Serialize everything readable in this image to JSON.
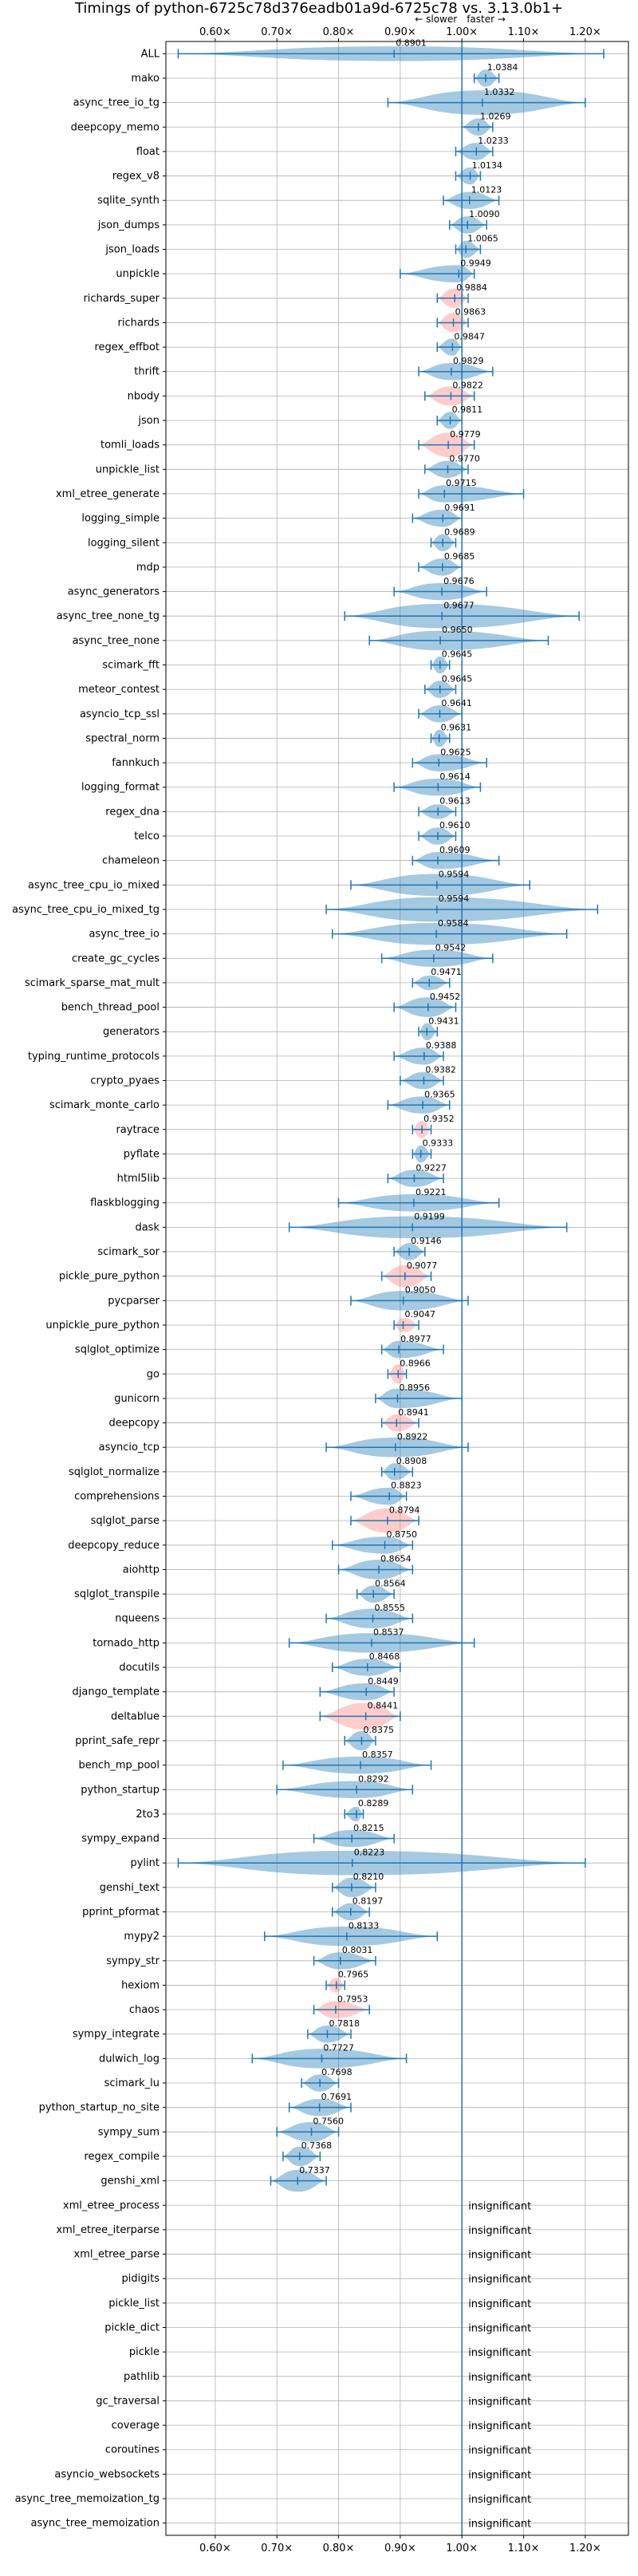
{
  "chart_data": {
    "type": "violin",
    "title": "Timings of python-6725c78d376eadb01a9d-6725c78 vs. 3.13.0b1+",
    "xlabel": "",
    "ylabel": "",
    "xlim": [
      0.52,
      1.27
    ],
    "x_ticks": [
      0.6,
      0.7,
      0.8,
      0.9,
      1.0,
      1.1,
      1.2
    ],
    "x_tick_labels": [
      "0.60×",
      "0.70×",
      "0.80×",
      "0.90×",
      "1.00×",
      "1.10×",
      "1.20×"
    ],
    "reference_line": 1.0,
    "direction_labels": {
      "slower": "← slower",
      "faster": "faster →"
    },
    "grid": true,
    "colors": {
      "faster": "#1f77b4",
      "slower": "#ff7f7f",
      "grid": "#b0b0b0"
    },
    "insignificant_label": "insignificant",
    "benchmarks": [
      {
        "name": "ALL",
        "value": 0.8901,
        "label": "0.8901",
        "min": 0.54,
        "max": 1.23,
        "width": 0.3,
        "color": "blue"
      },
      {
        "name": "mako",
        "value": 1.0384,
        "label": "1.0384",
        "min": 1.02,
        "max": 1.06,
        "width": 0.35,
        "color": "blue"
      },
      {
        "name": "async_tree_io_tg",
        "value": 1.0332,
        "label": "1.0332",
        "min": 0.88,
        "max": 1.2,
        "width": 0.5,
        "color": "blue"
      },
      {
        "name": "deepcopy_memo",
        "value": 1.0269,
        "label": "1.0269",
        "min": 1.0,
        "max": 1.05,
        "width": 0.35,
        "color": "blue"
      },
      {
        "name": "float",
        "value": 1.0233,
        "label": "1.0233",
        "min": 0.99,
        "max": 1.05,
        "width": 0.35,
        "color": "blue"
      },
      {
        "name": "regex_v8",
        "value": 1.0134,
        "label": "1.0134",
        "min": 0.99,
        "max": 1.03,
        "width": 0.35,
        "color": "blue"
      },
      {
        "name": "sqlite_synth",
        "value": 1.0123,
        "label": "1.0123",
        "min": 0.97,
        "max": 1.06,
        "width": 0.35,
        "color": "blue"
      },
      {
        "name": "json_dumps",
        "value": 1.009,
        "label": "1.0090",
        "min": 0.98,
        "max": 1.04,
        "width": 0.35,
        "color": "blue"
      },
      {
        "name": "json_loads",
        "value": 1.0065,
        "label": "1.0065",
        "min": 0.99,
        "max": 1.03,
        "width": 0.35,
        "color": "blue"
      },
      {
        "name": "unpickle",
        "value": 0.9949,
        "label": "0.9949",
        "min": 0.9,
        "max": 1.02,
        "width": 0.35,
        "color": "blue"
      },
      {
        "name": "richards_super",
        "value": 0.9884,
        "label": "0.9884",
        "min": 0.96,
        "max": 1.01,
        "width": 0.4,
        "color": "red"
      },
      {
        "name": "richards",
        "value": 0.9863,
        "label": "0.9863",
        "min": 0.96,
        "max": 1.01,
        "width": 0.4,
        "color": "red"
      },
      {
        "name": "regex_effbot",
        "value": 0.9847,
        "label": "0.9847",
        "min": 0.96,
        "max": 1.0,
        "width": 0.35,
        "color": "blue"
      },
      {
        "name": "thrift",
        "value": 0.9829,
        "label": "0.9829",
        "min": 0.93,
        "max": 1.05,
        "width": 0.35,
        "color": "blue"
      },
      {
        "name": "nbody",
        "value": 0.9822,
        "label": "0.9822",
        "min": 0.94,
        "max": 1.02,
        "width": 0.4,
        "color": "red"
      },
      {
        "name": "json",
        "value": 0.9811,
        "label": "0.9811",
        "min": 0.96,
        "max": 1.0,
        "width": 0.35,
        "color": "blue"
      },
      {
        "name": "tomli_loads",
        "value": 0.9779,
        "label": "0.9779",
        "min": 0.93,
        "max": 1.02,
        "width": 0.5,
        "color": "red"
      },
      {
        "name": "unpickle_list",
        "value": 0.977,
        "label": "0.9770",
        "min": 0.94,
        "max": 1.01,
        "width": 0.35,
        "color": "blue"
      },
      {
        "name": "xml_etree_generate",
        "value": 0.9715,
        "label": "0.9715",
        "min": 0.93,
        "max": 1.1,
        "width": 0.35,
        "color": "blue"
      },
      {
        "name": "logging_simple",
        "value": 0.9691,
        "label": "0.9691",
        "min": 0.92,
        "max": 1.0,
        "width": 0.35,
        "color": "blue"
      },
      {
        "name": "logging_silent",
        "value": 0.9689,
        "label": "0.9689",
        "min": 0.95,
        "max": 0.99,
        "width": 0.35,
        "color": "blue"
      },
      {
        "name": "mdp",
        "value": 0.9685,
        "label": "0.9685",
        "min": 0.93,
        "max": 1.0,
        "width": 0.35,
        "color": "blue"
      },
      {
        "name": "async_generators",
        "value": 0.9676,
        "label": "0.9676",
        "min": 0.89,
        "max": 1.04,
        "width": 0.35,
        "color": "blue"
      },
      {
        "name": "async_tree_none_tg",
        "value": 0.9677,
        "label": "0.9677",
        "min": 0.81,
        "max": 1.19,
        "width": 0.5,
        "color": "blue"
      },
      {
        "name": "async_tree_none",
        "value": 0.965,
        "label": "0.9650",
        "min": 0.85,
        "max": 1.14,
        "width": 0.4,
        "color": "blue"
      },
      {
        "name": "scimark_fft",
        "value": 0.9645,
        "label": "0.9645",
        "min": 0.95,
        "max": 0.98,
        "width": 0.35,
        "color": "blue"
      },
      {
        "name": "meteor_contest",
        "value": 0.9645,
        "label": "0.9645",
        "min": 0.94,
        "max": 0.99,
        "width": 0.35,
        "color": "blue"
      },
      {
        "name": "asyncio_tcp_ssl",
        "value": 0.9641,
        "label": "0.9641",
        "min": 0.93,
        "max": 1.0,
        "width": 0.35,
        "color": "blue"
      },
      {
        "name": "spectral_norm",
        "value": 0.9631,
        "label": "0.9631",
        "min": 0.95,
        "max": 0.98,
        "width": 0.35,
        "color": "blue"
      },
      {
        "name": "fannkuch",
        "value": 0.9625,
        "label": "0.9625",
        "min": 0.92,
        "max": 1.04,
        "width": 0.35,
        "color": "blue"
      },
      {
        "name": "logging_format",
        "value": 0.9614,
        "label": "0.9614",
        "min": 0.89,
        "max": 1.03,
        "width": 0.35,
        "color": "blue"
      },
      {
        "name": "regex_dna",
        "value": 0.9613,
        "label": "0.9613",
        "min": 0.93,
        "max": 0.99,
        "width": 0.3,
        "color": "blue"
      },
      {
        "name": "telco",
        "value": 0.961,
        "label": "0.9610",
        "min": 0.93,
        "max": 0.99,
        "width": 0.35,
        "color": "blue"
      },
      {
        "name": "chameleon",
        "value": 0.9609,
        "label": "0.9609",
        "min": 0.92,
        "max": 1.06,
        "width": 0.35,
        "color": "blue"
      },
      {
        "name": "async_tree_cpu_io_mixed",
        "value": 0.9594,
        "label": "0.9594",
        "min": 0.82,
        "max": 1.11,
        "width": 0.45,
        "color": "blue"
      },
      {
        "name": "async_tree_cpu_io_mixed_tg",
        "value": 0.9594,
        "label": "0.9594",
        "min": 0.78,
        "max": 1.22,
        "width": 0.5,
        "color": "blue"
      },
      {
        "name": "async_tree_io",
        "value": 0.9584,
        "label": "0.9584",
        "min": 0.79,
        "max": 1.17,
        "width": 0.45,
        "color": "blue"
      },
      {
        "name": "create_gc_cycles",
        "value": 0.9542,
        "label": "0.9542",
        "min": 0.87,
        "max": 1.05,
        "width": 0.35,
        "color": "blue"
      },
      {
        "name": "scimark_sparse_mat_mult",
        "value": 0.9471,
        "label": "0.9471",
        "min": 0.92,
        "max": 0.98,
        "width": 0.3,
        "color": "blue"
      },
      {
        "name": "bench_thread_pool",
        "value": 0.9452,
        "label": "0.9452",
        "min": 0.89,
        "max": 0.99,
        "width": 0.4,
        "color": "blue"
      },
      {
        "name": "generators",
        "value": 0.9431,
        "label": "0.9431",
        "min": 0.93,
        "max": 0.96,
        "width": 0.35,
        "color": "blue"
      },
      {
        "name": "typing_runtime_protocols",
        "value": 0.9388,
        "label": "0.9388",
        "min": 0.89,
        "max": 0.97,
        "width": 0.35,
        "color": "blue"
      },
      {
        "name": "crypto_pyaes",
        "value": 0.9382,
        "label": "0.9382",
        "min": 0.9,
        "max": 0.97,
        "width": 0.35,
        "color": "blue"
      },
      {
        "name": "scimark_monte_carlo",
        "value": 0.9365,
        "label": "0.9365",
        "min": 0.88,
        "max": 0.98,
        "width": 0.35,
        "color": "blue"
      },
      {
        "name": "raytrace",
        "value": 0.9352,
        "label": "0.9352",
        "min": 0.92,
        "max": 0.95,
        "width": 0.35,
        "color": "red"
      },
      {
        "name": "pyflate",
        "value": 0.9333,
        "label": "0.9333",
        "min": 0.92,
        "max": 0.95,
        "width": 0.35,
        "color": "blue"
      },
      {
        "name": "html5lib",
        "value": 0.9227,
        "label": "0.9227",
        "min": 0.88,
        "max": 0.97,
        "width": 0.35,
        "color": "blue"
      },
      {
        "name": "flaskblogging",
        "value": 0.9221,
        "label": "0.9221",
        "min": 0.8,
        "max": 1.06,
        "width": 0.35,
        "color": "blue"
      },
      {
        "name": "dask",
        "value": 0.9199,
        "label": "0.9199",
        "min": 0.72,
        "max": 1.17,
        "width": 0.45,
        "color": "blue"
      },
      {
        "name": "scimark_sor",
        "value": 0.9146,
        "label": "0.9146",
        "min": 0.89,
        "max": 0.94,
        "width": 0.35,
        "color": "blue"
      },
      {
        "name": "pickle_pure_python",
        "value": 0.9077,
        "label": "0.9077",
        "min": 0.87,
        "max": 0.95,
        "width": 0.45,
        "color": "red"
      },
      {
        "name": "pycparser",
        "value": 0.905,
        "label": "0.9050",
        "min": 0.82,
        "max": 1.01,
        "width": 0.4,
        "color": "blue"
      },
      {
        "name": "unpickle_pure_python",
        "value": 0.9047,
        "label": "0.9047",
        "min": 0.89,
        "max": 0.93,
        "width": 0.3,
        "color": "red"
      },
      {
        "name": "sqlglot_optimize",
        "value": 0.8977,
        "label": "0.8977",
        "min": 0.87,
        "max": 0.97,
        "width": 0.35,
        "color": "blue"
      },
      {
        "name": "go",
        "value": 0.8966,
        "label": "0.8966",
        "min": 0.88,
        "max": 0.91,
        "width": 0.4,
        "color": "red"
      },
      {
        "name": "gunicorn",
        "value": 0.8956,
        "label": "0.8956",
        "min": 0.86,
        "max": 1.0,
        "width": 0.4,
        "color": "blue"
      },
      {
        "name": "deepcopy",
        "value": 0.8941,
        "label": "0.8941",
        "min": 0.87,
        "max": 0.93,
        "width": 0.35,
        "color": "red"
      },
      {
        "name": "asyncio_tcp",
        "value": 0.8922,
        "label": "0.8922",
        "min": 0.78,
        "max": 1.01,
        "width": 0.4,
        "color": "blue"
      },
      {
        "name": "sqlglot_normalize",
        "value": 0.8908,
        "label": "0.8908",
        "min": 0.87,
        "max": 0.92,
        "width": 0.35,
        "color": "blue"
      },
      {
        "name": "comprehensions",
        "value": 0.8823,
        "label": "0.8823",
        "min": 0.82,
        "max": 0.91,
        "width": 0.35,
        "color": "blue"
      },
      {
        "name": "sqlglot_parse",
        "value": 0.8794,
        "label": "0.8794",
        "min": 0.82,
        "max": 0.93,
        "width": 0.5,
        "color": "red"
      },
      {
        "name": "deepcopy_reduce",
        "value": 0.875,
        "label": "0.8750",
        "min": 0.79,
        "max": 0.92,
        "width": 0.35,
        "color": "blue"
      },
      {
        "name": "aiohttp",
        "value": 0.8654,
        "label": "0.8654",
        "min": 0.8,
        "max": 0.92,
        "width": 0.4,
        "color": "blue"
      },
      {
        "name": "sqlglot_transpile",
        "value": 0.8564,
        "label": "0.8564",
        "min": 0.83,
        "max": 0.89,
        "width": 0.35,
        "color": "blue"
      },
      {
        "name": "nqueens",
        "value": 0.8555,
        "label": "0.8555",
        "min": 0.78,
        "max": 0.92,
        "width": 0.4,
        "color": "blue"
      },
      {
        "name": "tornado_http",
        "value": 0.8537,
        "label": "0.8537",
        "min": 0.72,
        "max": 1.02,
        "width": 0.4,
        "color": "blue"
      },
      {
        "name": "docutils",
        "value": 0.8468,
        "label": "0.8468",
        "min": 0.79,
        "max": 0.9,
        "width": 0.35,
        "color": "blue"
      },
      {
        "name": "django_template",
        "value": 0.8449,
        "label": "0.8449",
        "min": 0.77,
        "max": 0.89,
        "width": 0.35,
        "color": "blue"
      },
      {
        "name": "deltablue",
        "value": 0.8441,
        "label": "0.8441",
        "min": 0.77,
        "max": 0.9,
        "width": 0.55,
        "color": "red"
      },
      {
        "name": "pprint_safe_repr",
        "value": 0.8375,
        "label": "0.8375",
        "min": 0.81,
        "max": 0.86,
        "width": 0.4,
        "color": "blue"
      },
      {
        "name": "bench_mp_pool",
        "value": 0.8357,
        "label": "0.8357",
        "min": 0.71,
        "max": 0.95,
        "width": 0.35,
        "color": "blue"
      },
      {
        "name": "python_startup",
        "value": 0.8292,
        "label": "0.8292",
        "min": 0.7,
        "max": 0.92,
        "width": 0.35,
        "color": "blue"
      },
      {
        "name": "2to3",
        "value": 0.8289,
        "label": "0.8289",
        "min": 0.81,
        "max": 0.84,
        "width": 0.3,
        "color": "blue"
      },
      {
        "name": "sympy_expand",
        "value": 0.8215,
        "label": "0.8215",
        "min": 0.76,
        "max": 0.89,
        "width": 0.35,
        "color": "blue"
      },
      {
        "name": "pylint",
        "value": 0.8223,
        "label": "0.8223",
        "min": 0.54,
        "max": 1.2,
        "width": 0.5,
        "color": "blue"
      },
      {
        "name": "genshi_text",
        "value": 0.821,
        "label": "0.8210",
        "min": 0.79,
        "max": 0.86,
        "width": 0.4,
        "color": "blue"
      },
      {
        "name": "pprint_pformat",
        "value": 0.8197,
        "label": "0.8197",
        "min": 0.79,
        "max": 0.85,
        "width": 0.35,
        "color": "blue"
      },
      {
        "name": "mypy2",
        "value": 0.8133,
        "label": "0.8133",
        "min": 0.68,
        "max": 0.96,
        "width": 0.4,
        "color": "blue"
      },
      {
        "name": "sympy_str",
        "value": 0.8031,
        "label": "0.8031",
        "min": 0.76,
        "max": 0.86,
        "width": 0.35,
        "color": "blue"
      },
      {
        "name": "hexiom",
        "value": 0.7965,
        "label": "0.7965",
        "min": 0.78,
        "max": 0.81,
        "width": 0.3,
        "color": "red"
      },
      {
        "name": "chaos",
        "value": 0.7953,
        "label": "0.7953",
        "min": 0.76,
        "max": 0.85,
        "width": 0.35,
        "color": "red"
      },
      {
        "name": "sympy_integrate",
        "value": 0.7818,
        "label": "0.7818",
        "min": 0.75,
        "max": 0.82,
        "width": 0.35,
        "color": "blue"
      },
      {
        "name": "dulwich_log",
        "value": 0.7727,
        "label": "0.7727",
        "min": 0.66,
        "max": 0.91,
        "width": 0.4,
        "color": "blue"
      },
      {
        "name": "scimark_lu",
        "value": 0.7698,
        "label": "0.7698",
        "min": 0.74,
        "max": 0.8,
        "width": 0.35,
        "color": "blue"
      },
      {
        "name": "python_startup_no_site",
        "value": 0.7691,
        "label": "0.7691",
        "min": 0.72,
        "max": 0.82,
        "width": 0.35,
        "color": "blue"
      },
      {
        "name": "sympy_sum",
        "value": 0.756,
        "label": "0.7560",
        "min": 0.7,
        "max": 0.8,
        "width": 0.4,
        "color": "blue"
      },
      {
        "name": "regex_compile",
        "value": 0.7368,
        "label": "0.7368",
        "min": 0.71,
        "max": 0.77,
        "width": 0.4,
        "color": "blue"
      },
      {
        "name": "genshi_xml",
        "value": 0.7337,
        "label": "0.7337",
        "min": 0.69,
        "max": 0.78,
        "width": 0.45,
        "color": "blue"
      },
      {
        "name": "xml_etree_process",
        "insignificant": true
      },
      {
        "name": "xml_etree_iterparse",
        "insignificant": true
      },
      {
        "name": "xml_etree_parse",
        "insignificant": true
      },
      {
        "name": "pidigits",
        "insignificant": true
      },
      {
        "name": "pickle_list",
        "insignificant": true
      },
      {
        "name": "pickle_dict",
        "insignificant": true
      },
      {
        "name": "pickle",
        "insignificant": true
      },
      {
        "name": "pathlib",
        "insignificant": true
      },
      {
        "name": "gc_traversal",
        "insignificant": true
      },
      {
        "name": "coverage",
        "insignificant": true
      },
      {
        "name": "coroutines",
        "insignificant": true
      },
      {
        "name": "asyncio_websockets",
        "insignificant": true
      },
      {
        "name": "async_tree_memoization_tg",
        "insignificant": true
      },
      {
        "name": "async_tree_memoization",
        "insignificant": true
      }
    ]
  }
}
